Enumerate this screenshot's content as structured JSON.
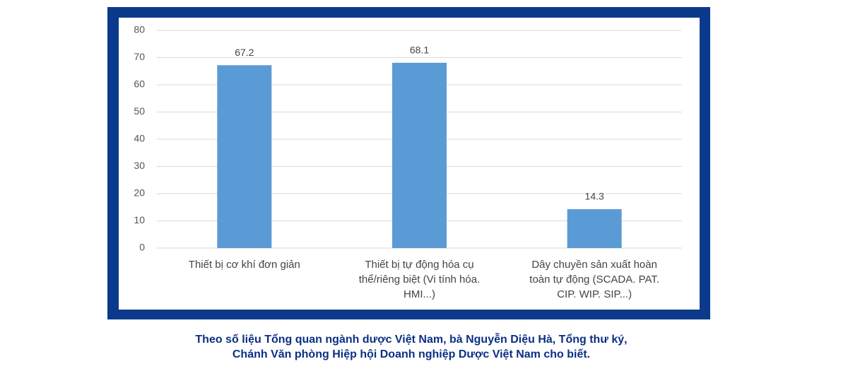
{
  "chart_data": {
    "type": "bar",
    "categories": [
      "Thiết bị cơ khí đơn giản",
      "Thiết bị tự động hóa cụ thể/riêng biệt (Vi tính hóa. HMI...)",
      "Dây chuyền sản xuất hoàn toàn tự động (SCADA. PAT. CIP. WIP. SIP...)"
    ],
    "values": [
      67.2,
      68.1,
      14.3
    ],
    "color": "#5b9bd5",
    "ylim": [
      0,
      80
    ],
    "yticks": [
      0,
      10,
      20,
      30,
      40,
      50,
      60,
      70,
      80
    ],
    "grid": true
  },
  "caption": [
    "Theo số liệu Tổng quan ngành dược Việt Nam, bà Nguyễn Diệu Hà, Tổng thư ký,",
    "Chánh Văn phòng Hiệp hội Doanh nghiệp Dược Việt Nam cho biết."
  ]
}
